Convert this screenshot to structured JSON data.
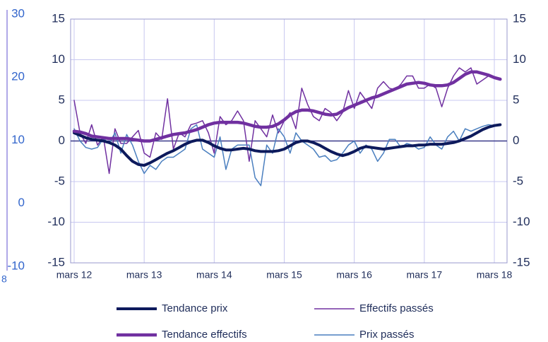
{
  "chart_data": {
    "type": "line",
    "categories": [
      "mars 12",
      null,
      null,
      null,
      null,
      null,
      null,
      null,
      null,
      null,
      null,
      null,
      "mars 13",
      null,
      null,
      null,
      null,
      null,
      null,
      null,
      null,
      null,
      null,
      null,
      "mars 14",
      null,
      null,
      null,
      null,
      null,
      null,
      null,
      null,
      null,
      null,
      null,
      "mars 15",
      null,
      null,
      null,
      null,
      null,
      null,
      null,
      null,
      null,
      null,
      null,
      "mars 16",
      null,
      null,
      null,
      null,
      null,
      null,
      null,
      null,
      null,
      null,
      null,
      "mars 17",
      null,
      null,
      null,
      null,
      null,
      null,
      null,
      null,
      null,
      null,
      null,
      "mars 18",
      null
    ],
    "series": [
      {
        "name": "Tendance prix",
        "color": "#0d1a5c",
        "width": 4,
        "values": [
          1,
          0.7,
          0.4,
          0.2,
          0.1,
          0,
          -0.2,
          -0.5,
          -1,
          -1.8,
          -2.5,
          -2.9,
          -3,
          -2.7,
          -2.3,
          -1.9,
          -1.5,
          -1.2,
          -0.8,
          -0.4,
          -0.1,
          0.1,
          0.1,
          -0.2,
          -0.6,
          -0.9,
          -1.1,
          -1.1,
          -1,
          -0.9,
          -1,
          -1.2,
          -1.3,
          -1.3,
          -1.3,
          -1.2,
          -1,
          -0.6,
          -0.2,
          0,
          0,
          -0.2,
          -0.5,
          -0.9,
          -1.3,
          -1.6,
          -1.8,
          -1.6,
          -1.3,
          -0.9,
          -0.7,
          -0.8,
          -0.9,
          -1,
          -0.9,
          -0.8,
          -0.7,
          -0.6,
          -0.6,
          -0.5,
          -0.5,
          -0.4,
          -0.4,
          -0.4,
          -0.3,
          -0.2,
          0,
          0.3,
          0.6,
          1,
          1.4,
          1.7,
          1.9,
          2
        ]
      },
      {
        "name": "Effectifs passés",
        "color": "#7030a0",
        "width": 1.5,
        "values": [
          5,
          1,
          -0.3,
          2,
          -0.5,
          0.5,
          -4,
          1.5,
          -0.3,
          -0.3,
          0.5,
          1.3,
          -1.5,
          -2,
          1,
          0.2,
          5.2,
          -1,
          1,
          0.5,
          2,
          2.2,
          2.5,
          1,
          -1.5,
          3,
          2,
          2.5,
          3.7,
          2.5,
          -2.5,
          2.5,
          1.5,
          0.5,
          3.2,
          1,
          2.5,
          3.5,
          1.5,
          6.5,
          4.5,
          3,
          2.5,
          4,
          3.5,
          2.5,
          3.5,
          6.2,
          4,
          6,
          5,
          4,
          6.5,
          7.3,
          6.5,
          6.3,
          7,
          8,
          8,
          6.5,
          6.5,
          7,
          6.5,
          4.2,
          6.5,
          8,
          9,
          8.5,
          9,
          7,
          7.5,
          8,
          7.8,
          7.6
        ]
      },
      {
        "name": "Tendance effectifs",
        "color": "#7030a0",
        "width": 4.5,
        "values": [
          1.2,
          1.1,
          0.9,
          0.6,
          0.5,
          0.4,
          0.3,
          0.3,
          0.3,
          0.3,
          0.2,
          0.1,
          0,
          0,
          0.2,
          0.4,
          0.6,
          0.8,
          0.9,
          1,
          1.2,
          1.4,
          1.7,
          2,
          2.2,
          2.3,
          2.3,
          2.3,
          2.3,
          2.2,
          2,
          1.8,
          1.7,
          1.7,
          1.8,
          2.1,
          2.6,
          3.2,
          3.6,
          3.8,
          3.8,
          3.7,
          3.5,
          3.3,
          3.2,
          3.3,
          3.7,
          4.1,
          4.4,
          4.7,
          5,
          5.3,
          5.5,
          5.8,
          6.1,
          6.4,
          6.7,
          7,
          7.1,
          7.2,
          7.1,
          6.9,
          6.8,
          6.8,
          6.9,
          7.2,
          7.7,
          8.2,
          8.5,
          8.5,
          8.3,
          8.1,
          7.8,
          7.6
        ]
      },
      {
        "name": "Prix passés",
        "color": "#4a7fbf",
        "width": 1.5,
        "values": [
          1.5,
          0,
          -0.8,
          -1,
          -0.8,
          0.3,
          -0.3,
          1,
          -1.5,
          0.8,
          -0.5,
          -2.5,
          -4,
          -3,
          -3.5,
          -2.5,
          -2,
          -2,
          -1.5,
          -1,
          1.5,
          2,
          -1,
          -1.5,
          -2,
          0.5,
          -3.5,
          -1,
          -0.5,
          -0.5,
          -0.5,
          -4.5,
          -5.5,
          -0.5,
          -1.5,
          1.5,
          0.5,
          -1.5,
          1,
          0,
          -0.5,
          -1,
          -2,
          -1.8,
          -2.5,
          -2.3,
          -1.5,
          -0.5,
          0,
          -1.5,
          -0.5,
          -1,
          -2.5,
          -1.5,
          0.2,
          0.2,
          -0.8,
          -0.3,
          -0.5,
          -1,
          -0.8,
          0.5,
          -0.5,
          -1,
          0.5,
          1.2,
          0,
          1.5,
          1.2,
          1.5,
          1.8,
          2,
          1.9,
          2
        ]
      }
    ],
    "ylim": [
      -15,
      15
    ],
    "yticks": [
      -15,
      -10,
      -5,
      0,
      5,
      10,
      15
    ],
    "y2lim": [
      -10,
      30
    ],
    "y2ticks": [
      -10,
      0,
      10,
      20,
      30
    ],
    "annotations": [
      "8"
    ],
    "grid": true
  }
}
